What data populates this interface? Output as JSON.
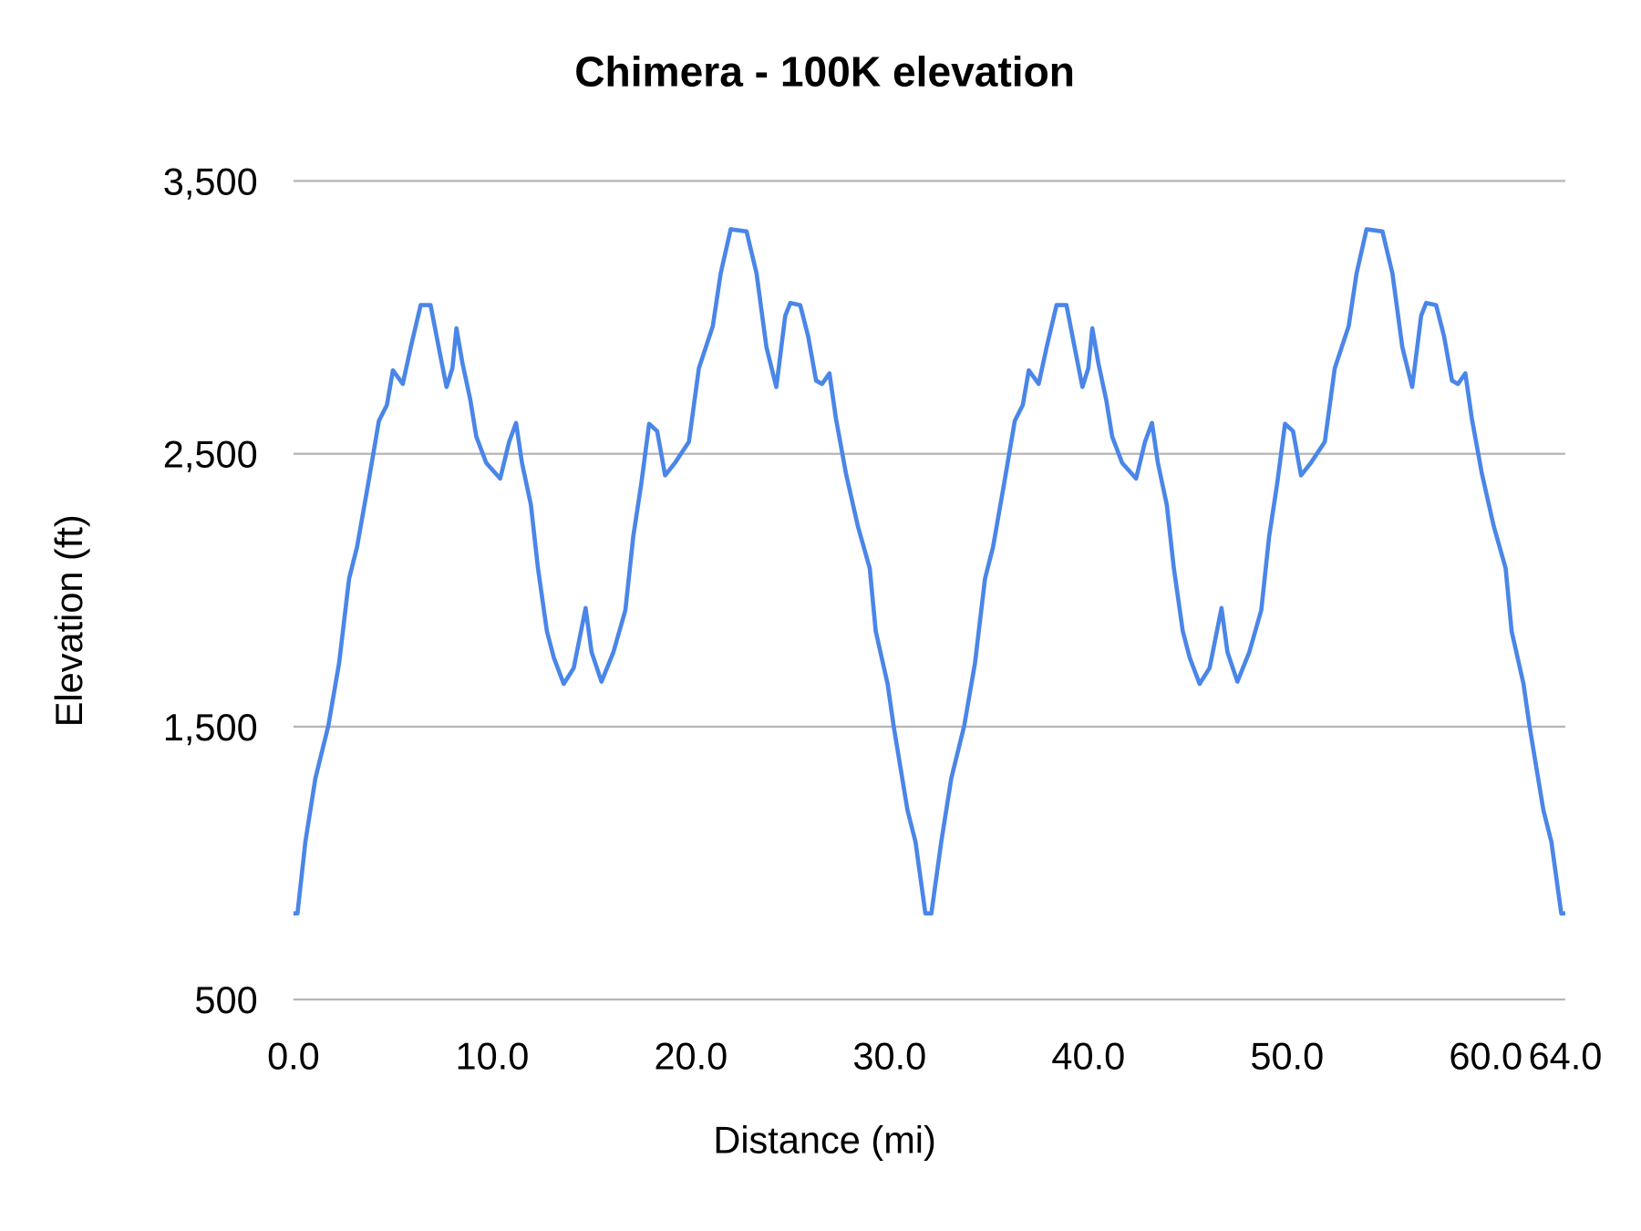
{
  "chart_data": {
    "type": "line",
    "title": "Chimera - 100K elevation",
    "xlabel": "Distance (mi)",
    "ylabel": "Elevation (ft)",
    "xlim": [
      0,
      64
    ],
    "ylim": [
      500,
      3500
    ],
    "x_ticks": [
      0,
      10,
      20,
      30,
      40,
      50,
      60,
      64
    ],
    "x_tick_labels": [
      "0.0",
      "10.0",
      "20.0",
      "30.0",
      "40.0",
      "50.0",
      "60.0",
      "64.0"
    ],
    "y_ticks": [
      500,
      1500,
      2500,
      3500
    ],
    "y_tick_labels": [
      "500",
      "1,500",
      "2,500",
      "3,500"
    ],
    "grid": "horizontal",
    "legend": "none",
    "line_color": "#4a86e8",
    "grid_color": "#b7b7b7",
    "series": [
      {
        "points": [
          [
            0,
            816
          ],
          [
            0.2,
            816
          ],
          [
            0.6,
            1078
          ],
          [
            1.1,
            1310
          ],
          [
            1.75,
            1503
          ],
          [
            2.3,
            1734
          ],
          [
            2.8,
            2043
          ],
          [
            3.2,
            2158
          ],
          [
            3.76,
            2390
          ],
          [
            4.3,
            2621
          ],
          [
            4.7,
            2679
          ],
          [
            5.0,
            2806
          ],
          [
            5.5,
            2756
          ],
          [
            5.9,
            2891
          ],
          [
            6.4,
            3045
          ],
          [
            6.9,
            3045
          ],
          [
            7.36,
            2872
          ],
          [
            7.7,
            2745
          ],
          [
            8.0,
            2814
          ],
          [
            8.2,
            2960
          ],
          [
            8.5,
            2833
          ],
          [
            8.9,
            2698
          ],
          [
            9.2,
            2563
          ],
          [
            9.7,
            2467
          ],
          [
            10.4,
            2409
          ],
          [
            10.85,
            2544
          ],
          [
            11.2,
            2613
          ],
          [
            11.5,
            2467
          ],
          [
            11.95,
            2313
          ],
          [
            12.3,
            2081
          ],
          [
            12.75,
            1850
          ],
          [
            13.1,
            1753
          ],
          [
            13.6,
            1657
          ],
          [
            14.1,
            1715
          ],
          [
            14.7,
            1935
          ],
          [
            15.0,
            1773
          ],
          [
            15.5,
            1665
          ],
          [
            16.1,
            1773
          ],
          [
            16.7,
            1927
          ],
          [
            17.1,
            2197
          ],
          [
            17.5,
            2390
          ],
          [
            17.9,
            2610
          ],
          [
            18.3,
            2583
          ],
          [
            18.7,
            2421
          ],
          [
            19.2,
            2467
          ],
          [
            19.9,
            2544
          ],
          [
            20.4,
            2814
          ],
          [
            21.1,
            2968
          ],
          [
            21.5,
            3161
          ],
          [
            22.0,
            3323
          ],
          [
            22.8,
            3315
          ],
          [
            23.3,
            3161
          ],
          [
            23.8,
            2891
          ],
          [
            24.3,
            2745
          ],
          [
            24.75,
            3006
          ],
          [
            25.0,
            3053
          ],
          [
            25.5,
            3045
          ],
          [
            25.9,
            2930
          ],
          [
            26.3,
            2768
          ],
          [
            26.6,
            2756
          ],
          [
            26.97,
            2795
          ],
          [
            27.3,
            2629
          ],
          [
            27.8,
            2428
          ],
          [
            28.4,
            2235
          ],
          [
            29.0,
            2081
          ],
          [
            29.3,
            1850
          ],
          [
            29.9,
            1657
          ],
          [
            30.2,
            1503
          ],
          [
            30.9,
            1194
          ],
          [
            31.3,
            1078
          ],
          [
            31.8,
            816
          ],
          [
            32.1,
            816
          ],
          [
            32.6,
            1078
          ],
          [
            33.1,
            1310
          ],
          [
            33.75,
            1503
          ],
          [
            34.3,
            1734
          ],
          [
            34.8,
            2043
          ],
          [
            35.2,
            2158
          ],
          [
            35.76,
            2390
          ],
          [
            36.3,
            2621
          ],
          [
            36.7,
            2679
          ],
          [
            37.0,
            2806
          ],
          [
            37.5,
            2756
          ],
          [
            37.9,
            2891
          ],
          [
            38.4,
            3045
          ],
          [
            38.9,
            3045
          ],
          [
            39.36,
            2872
          ],
          [
            39.7,
            2745
          ],
          [
            40.0,
            2814
          ],
          [
            40.2,
            2960
          ],
          [
            40.5,
            2833
          ],
          [
            40.9,
            2698
          ],
          [
            41.2,
            2563
          ],
          [
            41.7,
            2467
          ],
          [
            42.4,
            2409
          ],
          [
            42.85,
            2544
          ],
          [
            43.2,
            2613
          ],
          [
            43.5,
            2467
          ],
          [
            43.95,
            2313
          ],
          [
            44.3,
            2081
          ],
          [
            44.75,
            1850
          ],
          [
            45.1,
            1753
          ],
          [
            45.6,
            1657
          ],
          [
            46.1,
            1715
          ],
          [
            46.7,
            1935
          ],
          [
            47.0,
            1773
          ],
          [
            47.5,
            1665
          ],
          [
            48.1,
            1773
          ],
          [
            48.7,
            1927
          ],
          [
            49.1,
            2197
          ],
          [
            49.5,
            2390
          ],
          [
            49.9,
            2610
          ],
          [
            50.3,
            2583
          ],
          [
            50.7,
            2421
          ],
          [
            51.2,
            2467
          ],
          [
            51.9,
            2544
          ],
          [
            52.4,
            2814
          ],
          [
            53.1,
            2968
          ],
          [
            53.5,
            3161
          ],
          [
            54.0,
            3323
          ],
          [
            54.8,
            3315
          ],
          [
            55.3,
            3161
          ],
          [
            55.8,
            2891
          ],
          [
            56.3,
            2745
          ],
          [
            56.75,
            3006
          ],
          [
            57.0,
            3053
          ],
          [
            57.5,
            3045
          ],
          [
            57.9,
            2930
          ],
          [
            58.3,
            2768
          ],
          [
            58.6,
            2756
          ],
          [
            58.97,
            2795
          ],
          [
            59.3,
            2629
          ],
          [
            59.8,
            2428
          ],
          [
            60.4,
            2235
          ],
          [
            61.0,
            2081
          ],
          [
            61.3,
            1850
          ],
          [
            61.9,
            1657
          ],
          [
            62.2,
            1503
          ],
          [
            62.9,
            1194
          ],
          [
            63.3,
            1078
          ],
          [
            63.8,
            816
          ],
          [
            64.0,
            816
          ]
        ]
      }
    ]
  }
}
